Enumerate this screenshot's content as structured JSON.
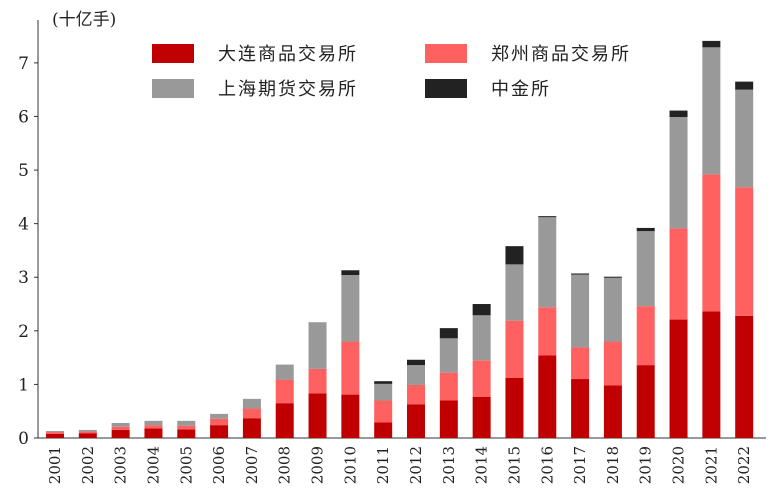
{
  "chart_data": {
    "type": "bar",
    "stacked": true,
    "unit_label": "(十亿手)",
    "ylim": [
      0,
      7.8
    ],
    "yticks": [
      0,
      1,
      2,
      3,
      4,
      5,
      6,
      7
    ],
    "categories": [
      "2001",
      "2002",
      "2003",
      "2004",
      "2005",
      "2006",
      "2007",
      "2008",
      "2009",
      "2010",
      "2011",
      "2012",
      "2013",
      "2014",
      "2015",
      "2016",
      "2017",
      "2018",
      "2019",
      "2020",
      "2021",
      "2022"
    ],
    "series": [
      {
        "name": "大连商品交易所",
        "color": "#c00000",
        "values": [
          0.08,
          0.09,
          0.15,
          0.18,
          0.16,
          0.24,
          0.37,
          0.65,
          0.83,
          0.81,
          0.29,
          0.63,
          0.7,
          0.77,
          1.12,
          1.54,
          1.1,
          0.98,
          1.36,
          2.21,
          2.36,
          2.28
        ]
      },
      {
        "name": "郑州商品交易所",
        "color": "#ff6060",
        "values": [
          0.03,
          0.03,
          0.06,
          0.06,
          0.07,
          0.12,
          0.18,
          0.44,
          0.46,
          0.99,
          0.41,
          0.36,
          0.52,
          0.68,
          1.07,
          0.9,
          0.59,
          0.82,
          1.1,
          1.7,
          2.56,
          2.4
        ]
      },
      {
        "name": "上海期货交易所",
        "color": "#999999",
        "values": [
          0.02,
          0.03,
          0.07,
          0.08,
          0.09,
          0.09,
          0.18,
          0.28,
          0.87,
          1.24,
          0.31,
          0.37,
          0.64,
          0.84,
          1.05,
          1.68,
          1.36,
          1.19,
          1.4,
          2.08,
          2.37,
          1.82
        ]
      },
      {
        "name": "中金所",
        "color": "#222222",
        "values": [
          0,
          0,
          0,
          0,
          0,
          0,
          0,
          0,
          0,
          0.09,
          0.05,
          0.1,
          0.19,
          0.21,
          0.34,
          0.02,
          0.02,
          0.02,
          0.06,
          0.12,
          0.12,
          0.15
        ]
      }
    ]
  }
}
